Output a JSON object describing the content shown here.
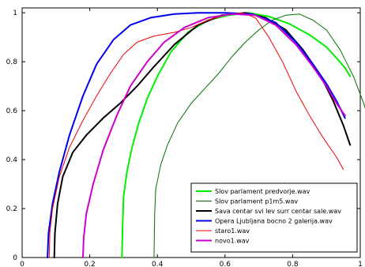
{
  "chart_data": {
    "type": "line",
    "title": "",
    "xlabel": "",
    "ylabel": "",
    "xlim": [
      0,
      1
    ],
    "ylim": [
      0,
      1.02
    ],
    "x_ticks": [
      "0",
      "0.2",
      "0.4",
      "0.6",
      "0.8",
      "1"
    ],
    "y_ticks": [
      "0",
      "0.2",
      "0.4",
      "0.6",
      "0.8",
      "1"
    ],
    "grid": false,
    "legend_position": "bottom-right",
    "series": [
      {
        "name": "Slov parlament predvorje.wav",
        "color": "#00ee00",
        "width": 2,
        "points": [
          [
            0.295,
            0
          ],
          [
            0.297,
            0.12
          ],
          [
            0.3,
            0.25
          ],
          [
            0.31,
            0.35
          ],
          [
            0.325,
            0.45
          ],
          [
            0.345,
            0.55
          ],
          [
            0.37,
            0.65
          ],
          [
            0.4,
            0.74
          ],
          [
            0.44,
            0.84
          ],
          [
            0.49,
            0.92
          ],
          [
            0.55,
            0.97
          ],
          [
            0.61,
            0.99
          ],
          [
            0.67,
            1.0
          ],
          [
            0.73,
            0.985
          ],
          [
            0.79,
            0.955
          ],
          [
            0.85,
            0.91
          ],
          [
            0.9,
            0.86
          ],
          [
            0.93,
            0.815
          ],
          [
            0.955,
            0.775
          ],
          [
            0.97,
            0.74
          ]
        ]
      },
      {
        "name": "Slov parlament p1m5.wav",
        "color": "#007000",
        "width": 1,
        "points": [
          [
            0.39,
            0
          ],
          [
            0.392,
            0.18
          ],
          [
            0.395,
            0.28
          ],
          [
            0.41,
            0.38
          ],
          [
            0.43,
            0.46
          ],
          [
            0.46,
            0.55
          ],
          [
            0.5,
            0.63
          ],
          [
            0.54,
            0.69
          ],
          [
            0.58,
            0.75
          ],
          [
            0.62,
            0.82
          ],
          [
            0.66,
            0.88
          ],
          [
            0.7,
            0.93
          ],
          [
            0.74,
            0.97
          ],
          [
            0.78,
            0.99
          ],
          [
            0.82,
            0.995
          ],
          [
            0.86,
            0.97
          ],
          [
            0.9,
            0.93
          ],
          [
            0.94,
            0.85
          ],
          [
            0.98,
            0.74
          ],
          [
            1.01,
            0.63
          ],
          [
            1.035,
            0.52
          ]
        ]
      },
      {
        "name": "Sava centar svi lev surr centar sale.wav",
        "color": "#000000",
        "width": 2,
        "points": [
          [
            0.095,
            0
          ],
          [
            0.097,
            0.1
          ],
          [
            0.105,
            0.22
          ],
          [
            0.12,
            0.33
          ],
          [
            0.15,
            0.43
          ],
          [
            0.19,
            0.5
          ],
          [
            0.24,
            0.57
          ],
          [
            0.29,
            0.63
          ],
          [
            0.34,
            0.7
          ],
          [
            0.39,
            0.78
          ],
          [
            0.45,
            0.87
          ],
          [
            0.52,
            0.95
          ],
          [
            0.59,
            0.99
          ],
          [
            0.66,
            1.0
          ],
          [
            0.72,
            0.98
          ],
          [
            0.78,
            0.93
          ],
          [
            0.83,
            0.85
          ],
          [
            0.88,
            0.75
          ],
          [
            0.92,
            0.64
          ],
          [
            0.95,
            0.54
          ],
          [
            0.97,
            0.46
          ]
        ]
      },
      {
        "name": "Opera Ljubljana bocno 2 galerija.wav",
        "color": "#0000ee",
        "width": 2,
        "points": [
          [
            0.075,
            0
          ],
          [
            0.078,
            0.1
          ],
          [
            0.09,
            0.22
          ],
          [
            0.11,
            0.35
          ],
          [
            0.14,
            0.5
          ],
          [
            0.18,
            0.66
          ],
          [
            0.22,
            0.79
          ],
          [
            0.27,
            0.89
          ],
          [
            0.32,
            0.95
          ],
          [
            0.38,
            0.98
          ],
          [
            0.45,
            0.995
          ],
          [
            0.52,
            1.0
          ],
          [
            0.6,
            1.0
          ],
          [
            0.68,
            0.995
          ],
          [
            0.75,
            0.96
          ],
          [
            0.81,
            0.88
          ],
          [
            0.86,
            0.79
          ],
          [
            0.9,
            0.71
          ],
          [
            0.93,
            0.64
          ],
          [
            0.955,
            0.57
          ]
        ]
      },
      {
        "name": "staro1.wav",
        "color": "#ee0000",
        "width": 1,
        "points": [
          [
            0.08,
            0
          ],
          [
            0.082,
            0.1
          ],
          [
            0.09,
            0.2
          ],
          [
            0.11,
            0.33
          ],
          [
            0.14,
            0.45
          ],
          [
            0.18,
            0.56
          ],
          [
            0.22,
            0.66
          ],
          [
            0.26,
            0.75
          ],
          [
            0.3,
            0.83
          ],
          [
            0.34,
            0.88
          ],
          [
            0.39,
            0.905
          ],
          [
            0.45,
            0.92
          ],
          [
            0.5,
            0.94
          ],
          [
            0.55,
            0.97
          ],
          [
            0.6,
            0.99
          ],
          [
            0.65,
            1.0
          ],
          [
            0.69,
            0.98
          ],
          [
            0.73,
            0.9
          ],
          [
            0.77,
            0.8
          ],
          [
            0.81,
            0.68
          ],
          [
            0.85,
            0.58
          ],
          [
            0.89,
            0.49
          ],
          [
            0.93,
            0.41
          ],
          [
            0.95,
            0.36
          ]
        ]
      },
      {
        "name": "novo1.wav",
        "color": "#cc00cc",
        "width": 2,
        "points": [
          [
            0.18,
            0
          ],
          [
            0.182,
            0.08
          ],
          [
            0.19,
            0.18
          ],
          [
            0.21,
            0.3
          ],
          [
            0.24,
            0.44
          ],
          [
            0.28,
            0.58
          ],
          [
            0.32,
            0.7
          ],
          [
            0.37,
            0.8
          ],
          [
            0.42,
            0.88
          ],
          [
            0.48,
            0.94
          ],
          [
            0.55,
            0.98
          ],
          [
            0.62,
            0.995
          ],
          [
            0.69,
            0.99
          ],
          [
            0.75,
            0.95
          ],
          [
            0.81,
            0.87
          ],
          [
            0.86,
            0.78
          ],
          [
            0.9,
            0.7
          ],
          [
            0.93,
            0.63
          ],
          [
            0.955,
            0.58
          ]
        ]
      }
    ]
  }
}
